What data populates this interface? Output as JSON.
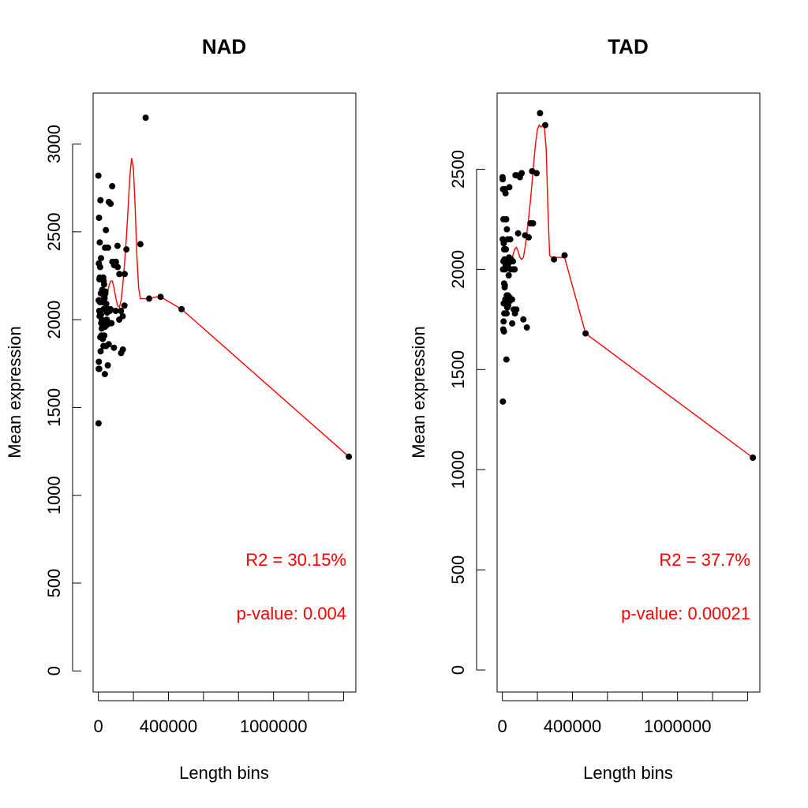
{
  "chart_data": [
    {
      "type": "scatter",
      "title": "NAD",
      "xlabel": "Length bins",
      "ylabel": "Mean expression",
      "xlim": [
        -30000,
        1470000
      ],
      "ylim": [
        -120,
        3290
      ],
      "x_ticks": [
        0,
        200000,
        400000,
        600000,
        800000,
        1000000,
        1200000,
        1400000
      ],
      "x_tick_labels": [
        "0",
        "",
        "400000",
        "",
        "",
        "1000000",
        "",
        ""
      ],
      "y_ticks": [
        0,
        500,
        1000,
        1500,
        2000,
        2500,
        3000
      ],
      "y_tick_labels": [
        "0",
        "500",
        "1000",
        "1500",
        "2000",
        "2500",
        "3000"
      ],
      "points": {
        "x": [
          0,
          4000,
          8000,
          12000,
          3000,
          6000,
          10000,
          15000,
          2000,
          5000,
          9000,
          14000,
          18000,
          20000,
          25000,
          30000,
          35000,
          40000,
          45000,
          50000,
          55000,
          60000,
          65000,
          70000,
          75000,
          80000,
          90000,
          100000,
          110000,
          120000,
          130000,
          140000,
          150000,
          160000,
          7000,
          11000,
          16000,
          22000,
          28000,
          33000,
          38000,
          43000,
          48000,
          53000,
          58000,
          63000,
          3000,
          13000,
          24000,
          34000,
          44000,
          54000,
          2000,
          17000,
          27000,
          37000,
          1000,
          19000,
          29000,
          39000,
          49000,
          59000,
          69000,
          79000,
          89000,
          99000,
          109000,
          119000,
          129000,
          139000,
          149000,
          10000,
          20000,
          30000,
          40000,
          5000,
          25000,
          8000,
          35000,
          15000,
          270000,
          240000,
          290000,
          355000,
          475000,
          1430000
        ],
        "y": [
          2820,
          2580,
          2440,
          2680,
          2320,
          2230,
          2300,
          2350,
          2110,
          2050,
          2100,
          2150,
          2230,
          2000,
          2100,
          2060,
          2120,
          2150,
          2090,
          2040,
          2410,
          2670,
          2050,
          2660,
          1980,
          2330,
          2310,
          2330,
          2300,
          2260,
          1810,
          1830,
          2260,
          2400,
          2020,
          1900,
          1980,
          2170,
          2240,
          2200,
          2410,
          2510,
          2000,
          2060,
          2050,
          1980,
          1760,
          1820,
          1990,
          1910,
          1850,
          1740,
          1720,
          1910,
          1900,
          1690,
          1410,
          1950,
          1850,
          1960,
          1970,
          1860,
          2060,
          2760,
          1840,
          2050,
          2420,
          2000,
          2050,
          2020,
          2080,
          2030,
          2110,
          2220,
          2160,
          1720,
          1890,
          2240,
          2130,
          2030,
          3150,
          2430,
          2120,
          2130,
          2060,
          1220
        ]
      },
      "fit": {
        "x": [
          0,
          10000,
          20000,
          30000,
          40000,
          50000,
          60000,
          70000,
          80000,
          90000,
          100000,
          110000,
          120000,
          130000,
          140000,
          150000,
          160000,
          170000,
          180000,
          190000,
          200000,
          210000,
          220000,
          230000,
          240000,
          250000,
          260000,
          270000,
          280000,
          290000,
          330000,
          355000,
          475000,
          1430000
        ],
        "y": [
          2130,
          2110,
          2090,
          2080,
          2100,
          2140,
          2190,
          2220,
          2220,
          2180,
          2120,
          2080,
          2070,
          2110,
          2200,
          2330,
          2470,
          2640,
          2820,
          2920,
          2860,
          2640,
          2360,
          2180,
          2120,
          2120,
          2120,
          2120,
          2120,
          2120,
          2130,
          2130,
          2060,
          1220
        ]
      },
      "annotations": [
        "R2 = 30.15%",
        "p-value: 0.004"
      ],
      "colors": {
        "points": "#000000",
        "fit": "#ff0000",
        "annotation": "#ff0000"
      }
    },
    {
      "type": "scatter",
      "title": "TAD",
      "xlabel": "Length bins",
      "ylabel": "Mean expression",
      "xlim": [
        -30000,
        1470000
      ],
      "ylim": [
        -110,
        2880
      ],
      "x_ticks": [
        0,
        200000,
        400000,
        600000,
        800000,
        1000000,
        1200000,
        1400000
      ],
      "x_tick_labels": [
        "0",
        "",
        "400000",
        "",
        "",
        "1000000",
        "",
        ""
      ],
      "y_ticks": [
        0,
        500,
        1000,
        1500,
        2000,
        2500
      ],
      "y_tick_labels": [
        "0",
        "500",
        "1000",
        "1500",
        "2000",
        "2500"
      ],
      "points": {
        "x": [
          2000,
          4000,
          6000,
          8000,
          10000,
          12000,
          15000,
          18000,
          22000,
          26000,
          30000,
          35000,
          40000,
          45000,
          50000,
          55000,
          60000,
          65000,
          70000,
          75000,
          80000,
          90000,
          100000,
          110000,
          120000,
          130000,
          140000,
          150000,
          160000,
          170000,
          5000,
          9000,
          13000,
          17000,
          21000,
          25000,
          29000,
          33000,
          37000,
          41000,
          3000,
          7000,
          11000,
          14000,
          19000,
          23000,
          27000,
          31000,
          1000,
          6000,
          16000,
          24000,
          32000,
          40000,
          48000,
          56000,
          64000,
          72000,
          80000,
          2000,
          20000,
          38000,
          4000,
          28000,
          8000,
          36000,
          10000,
          30000,
          215000,
          245000,
          195000,
          175000,
          295000,
          355000,
          475000,
          1430000
        ],
        "y": [
          2450,
          2400,
          2250,
          2130,
          2100,
          2050,
          2400,
          2380,
          2250,
          2200,
          2150,
          2030,
          2410,
          2150,
          2050,
          1850,
          2040,
          1800,
          2000,
          2470,
          1800,
          2180,
          2460,
          2480,
          1750,
          2170,
          1710,
          2160,
          2230,
          2490,
          1700,
          1690,
          1910,
          1850,
          1830,
          1870,
          1810,
          1820,
          1840,
          1860,
          1340,
          1740,
          1780,
          1920,
          2020,
          1550,
          1810,
          2040,
          2460,
          2040,
          2000,
          1780,
          1870,
          1840,
          2000,
          1730,
          2000,
          1780,
          2470,
          2150,
          2100,
          2060,
          2000,
          2030,
          1830,
          1970,
          1930,
          2010,
          2780,
          2720,
          2480,
          2230,
          2050,
          2070,
          1680,
          1060
        ]
      },
      "fit": {
        "x": [
          0,
          10000,
          20000,
          30000,
          40000,
          50000,
          60000,
          70000,
          80000,
          90000,
          100000,
          110000,
          120000,
          130000,
          140000,
          150000,
          160000,
          170000,
          180000,
          190000,
          200000,
          210000,
          220000,
          230000,
          240000,
          250000,
          260000,
          270000,
          280000,
          290000,
          330000,
          355000,
          475000,
          1430000
        ],
        "y": [
          2010,
          2000,
          1990,
          2000,
          2010,
          2030,
          2070,
          2100,
          2110,
          2090,
          2060,
          2050,
          2060,
          2110,
          2180,
          2260,
          2340,
          2440,
          2540,
          2630,
          2700,
          2720,
          2710,
          2720,
          2710,
          2600,
          2300,
          2070,
          2060,
          2060,
          2060,
          2060,
          1680,
          1060
        ]
      },
      "annotations": [
        "R2 = 37.7%",
        "p-value: 0.00021"
      ],
      "colors": {
        "points": "#000000",
        "fit": "#ff0000",
        "annotation": "#ff0000"
      }
    }
  ]
}
